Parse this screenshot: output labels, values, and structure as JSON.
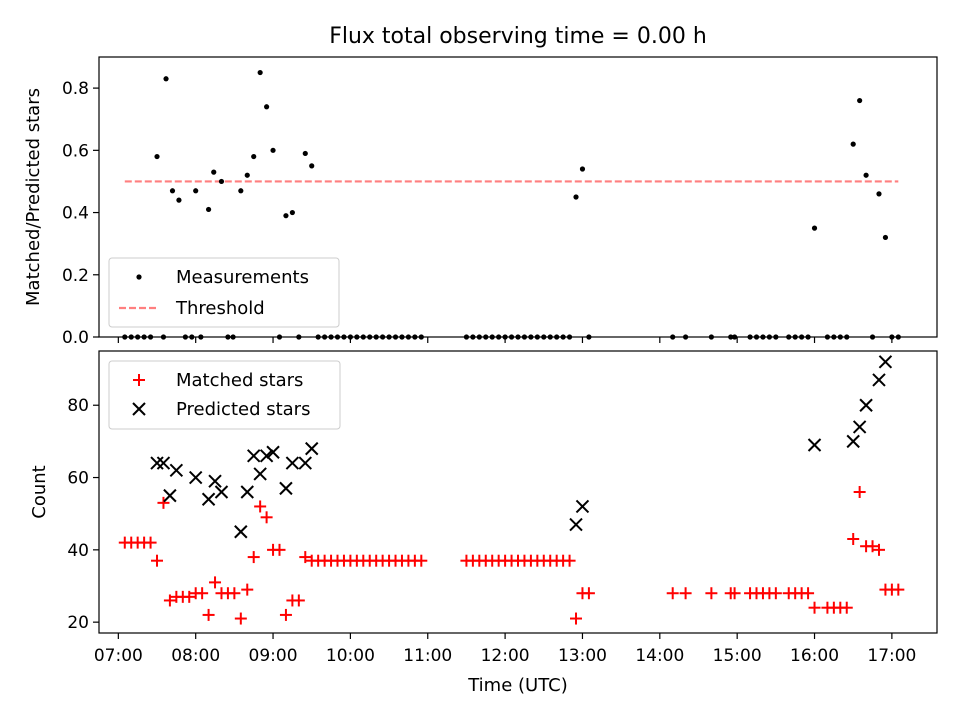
{
  "title": "Flux total observing time = 0.00 h",
  "chart_data": [
    {
      "type": "scatter",
      "panel": "top",
      "ylabel": "Matched/Predicted stars",
      "xlabel": "",
      "xlim": [
        "06:45",
        "17:35"
      ],
      "ylim": [
        0,
        0.9
      ],
      "yticks": [
        0.0,
        0.2,
        0.4,
        0.6,
        0.8
      ],
      "ytick_labels": [
        "0.0",
        "0.2",
        "0.4",
        "0.6",
        "0.8"
      ],
      "legend_position": "lower-left",
      "series": [
        {
          "name": "Measurements",
          "marker": "dot",
          "color": "#000000",
          "points": [
            [
              "07:05",
              0
            ],
            [
              "07:10",
              0
            ],
            [
              "07:15",
              0
            ],
            [
              "07:20",
              0
            ],
            [
              "07:25",
              0
            ],
            [
              "07:30",
              0.58
            ],
            [
              "07:35",
              0
            ],
            [
              "07:37",
              0.83
            ],
            [
              "07:42",
              0.47
            ],
            [
              "07:47",
              0.44
            ],
            [
              "07:52",
              0
            ],
            [
              "07:57",
              0
            ],
            [
              "08:00",
              0.47
            ],
            [
              "08:04",
              0
            ],
            [
              "08:10",
              0.41
            ],
            [
              "08:14",
              0.53
            ],
            [
              "08:20",
              0.5
            ],
            [
              "08:25",
              0
            ],
            [
              "08:29",
              0
            ],
            [
              "08:35",
              0.47
            ],
            [
              "08:40",
              0.52
            ],
            [
              "08:45",
              0.58
            ],
            [
              "08:50",
              0.85
            ],
            [
              "08:55",
              0.74
            ],
            [
              "09:00",
              0.6
            ],
            [
              "09:05",
              0
            ],
            [
              "09:10",
              0.39
            ],
            [
              "09:15",
              0.4
            ],
            [
              "09:20",
              0
            ],
            [
              "09:25",
              0.59
            ],
            [
              "09:30",
              0.55
            ],
            [
              "09:35",
              0
            ],
            [
              "09:40",
              0
            ],
            [
              "09:45",
              0
            ],
            [
              "09:50",
              0
            ],
            [
              "09:55",
              0
            ],
            [
              "10:00",
              0
            ],
            [
              "10:05",
              0
            ],
            [
              "10:10",
              0
            ],
            [
              "10:15",
              0
            ],
            [
              "10:20",
              0
            ],
            [
              "10:25",
              0
            ],
            [
              "10:30",
              0
            ],
            [
              "10:35",
              0
            ],
            [
              "10:40",
              0
            ],
            [
              "10:45",
              0
            ],
            [
              "10:50",
              0
            ],
            [
              "10:55",
              0
            ],
            [
              "11:30",
              0
            ],
            [
              "11:35",
              0
            ],
            [
              "11:40",
              0
            ],
            [
              "11:45",
              0
            ],
            [
              "11:50",
              0
            ],
            [
              "11:55",
              0
            ],
            [
              "12:00",
              0
            ],
            [
              "12:05",
              0
            ],
            [
              "12:10",
              0
            ],
            [
              "12:15",
              0
            ],
            [
              "12:20",
              0
            ],
            [
              "12:25",
              0
            ],
            [
              "12:30",
              0
            ],
            [
              "12:35",
              0
            ],
            [
              "12:40",
              0
            ],
            [
              "12:45",
              0
            ],
            [
              "12:50",
              0
            ],
            [
              "12:55",
              0.45
            ],
            [
              "13:00",
              0.54
            ],
            [
              "13:05",
              0
            ],
            [
              "14:10",
              0
            ],
            [
              "14:20",
              0
            ],
            [
              "14:40",
              0
            ],
            [
              "14:55",
              0
            ],
            [
              "14:58",
              0
            ],
            [
              "15:10",
              0
            ],
            [
              "15:15",
              0
            ],
            [
              "15:20",
              0
            ],
            [
              "15:25",
              0
            ],
            [
              "15:30",
              0
            ],
            [
              "15:40",
              0
            ],
            [
              "15:45",
              0
            ],
            [
              "15:50",
              0
            ],
            [
              "15:55",
              0
            ],
            [
              "16:00",
              0.35
            ],
            [
              "16:10",
              0
            ],
            [
              "16:15",
              0
            ],
            [
              "16:20",
              0
            ],
            [
              "16:25",
              0
            ],
            [
              "16:30",
              0.62
            ],
            [
              "16:35",
              0.76
            ],
            [
              "16:40",
              0.52
            ],
            [
              "16:45",
              0
            ],
            [
              "16:50",
              0.46
            ],
            [
              "16:55",
              0.32
            ],
            [
              "17:00",
              0
            ],
            [
              "17:05",
              0
            ]
          ]
        },
        {
          "name": "Threshold",
          "marker": "dashed-line",
          "color": "#ff7f7f",
          "points": [
            [
              "07:05",
              0.5
            ],
            [
              "17:05",
              0.5
            ]
          ]
        }
      ]
    },
    {
      "type": "scatter",
      "panel": "bottom",
      "xlabel": "Time (UTC)",
      "ylabel": "Count",
      "xlim": [
        "06:45",
        "17:35"
      ],
      "ylim": [
        17,
        95
      ],
      "yticks": [
        20,
        40,
        60,
        80
      ],
      "ytick_labels": [
        "20",
        "40",
        "60",
        "80"
      ],
      "xticks": [
        "07:00",
        "08:00",
        "09:00",
        "10:00",
        "11:00",
        "12:00",
        "13:00",
        "14:00",
        "15:00",
        "16:00",
        "17:00"
      ],
      "xtick_labels": [
        "07:00",
        "08:00",
        "09:00",
        "10:00",
        "11:00",
        "12:00",
        "13:00",
        "14:00",
        "15:00",
        "16:00",
        "17:00"
      ],
      "legend_position": "upper-left",
      "series": [
        {
          "name": "Matched stars",
          "marker": "plus",
          "color": "#ff0000",
          "points": [
            [
              "07:05",
              42
            ],
            [
              "07:10",
              42
            ],
            [
              "07:15",
              42
            ],
            [
              "07:20",
              42
            ],
            [
              "07:25",
              42
            ],
            [
              "07:30",
              37
            ],
            [
              "07:35",
              53
            ],
            [
              "07:40",
              26
            ],
            [
              "07:45",
              27
            ],
            [
              "07:50",
              27
            ],
            [
              "07:55",
              27
            ],
            [
              "08:00",
              28
            ],
            [
              "08:05",
              28
            ],
            [
              "08:10",
              22
            ],
            [
              "08:15",
              31
            ],
            [
              "08:20",
              28
            ],
            [
              "08:25",
              28
            ],
            [
              "08:30",
              28
            ],
            [
              "08:35",
              21
            ],
            [
              "08:40",
              29
            ],
            [
              "08:45",
              38
            ],
            [
              "08:50",
              52
            ],
            [
              "08:55",
              49
            ],
            [
              "09:00",
              40
            ],
            [
              "09:05",
              40
            ],
            [
              "09:10",
              22
            ],
            [
              "09:15",
              26
            ],
            [
              "09:20",
              26
            ],
            [
              "09:25",
              38
            ],
            [
              "09:30",
              37
            ],
            [
              "09:35",
              37
            ],
            [
              "09:40",
              37
            ],
            [
              "09:45",
              37
            ],
            [
              "09:50",
              37
            ],
            [
              "09:55",
              37
            ],
            [
              "10:00",
              37
            ],
            [
              "10:05",
              37
            ],
            [
              "10:10",
              37
            ],
            [
              "10:15",
              37
            ],
            [
              "10:20",
              37
            ],
            [
              "10:25",
              37
            ],
            [
              "10:30",
              37
            ],
            [
              "10:35",
              37
            ],
            [
              "10:40",
              37
            ],
            [
              "10:45",
              37
            ],
            [
              "10:50",
              37
            ],
            [
              "10:55",
              37
            ],
            [
              "11:30",
              37
            ],
            [
              "11:35",
              37
            ],
            [
              "11:40",
              37
            ],
            [
              "11:45",
              37
            ],
            [
              "11:50",
              37
            ],
            [
              "11:55",
              37
            ],
            [
              "12:00",
              37
            ],
            [
              "12:05",
              37
            ],
            [
              "12:10",
              37
            ],
            [
              "12:15",
              37
            ],
            [
              "12:20",
              37
            ],
            [
              "12:25",
              37
            ],
            [
              "12:30",
              37
            ],
            [
              "12:35",
              37
            ],
            [
              "12:40",
              37
            ],
            [
              "12:45",
              37
            ],
            [
              "12:50",
              37
            ],
            [
              "12:55",
              21
            ],
            [
              "13:00",
              28
            ],
            [
              "13:05",
              28
            ],
            [
              "14:10",
              28
            ],
            [
              "14:20",
              28
            ],
            [
              "14:40",
              28
            ],
            [
              "14:55",
              28
            ],
            [
              "14:58",
              28
            ],
            [
              "15:10",
              28
            ],
            [
              "15:15",
              28
            ],
            [
              "15:20",
              28
            ],
            [
              "15:25",
              28
            ],
            [
              "15:30",
              28
            ],
            [
              "15:40",
              28
            ],
            [
              "15:45",
              28
            ],
            [
              "15:50",
              28
            ],
            [
              "15:55",
              28
            ],
            [
              "16:00",
              24
            ],
            [
              "16:10",
              24
            ],
            [
              "16:15",
              24
            ],
            [
              "16:20",
              24
            ],
            [
              "16:25",
              24
            ],
            [
              "16:30",
              43
            ],
            [
              "16:35",
              56
            ],
            [
              "16:40",
              41
            ],
            [
              "16:45",
              41
            ],
            [
              "16:50",
              40
            ],
            [
              "16:55",
              29
            ],
            [
              "17:00",
              29
            ],
            [
              "17:05",
              29
            ]
          ]
        },
        {
          "name": "Predicted stars",
          "marker": "x",
          "color": "#000000",
          "points": [
            [
              "07:30",
              64
            ],
            [
              "07:35",
              64
            ],
            [
              "07:40",
              55
            ],
            [
              "07:45",
              62
            ],
            [
              "08:00",
              60
            ],
            [
              "08:10",
              54
            ],
            [
              "08:15",
              59
            ],
            [
              "08:20",
              56
            ],
            [
              "08:35",
              45
            ],
            [
              "08:40",
              56
            ],
            [
              "08:45",
              66
            ],
            [
              "08:50",
              61
            ],
            [
              "08:55",
              66
            ],
            [
              "09:00",
              67
            ],
            [
              "09:10",
              57
            ],
            [
              "09:15",
              64
            ],
            [
              "09:25",
              64
            ],
            [
              "09:30",
              68
            ],
            [
              "12:55",
              47
            ],
            [
              "13:00",
              52
            ],
            [
              "16:00",
              69
            ],
            [
              "16:30",
              70
            ],
            [
              "16:35",
              74
            ],
            [
              "16:40",
              80
            ],
            [
              "16:50",
              87
            ],
            [
              "16:55",
              92
            ]
          ]
        }
      ]
    }
  ]
}
